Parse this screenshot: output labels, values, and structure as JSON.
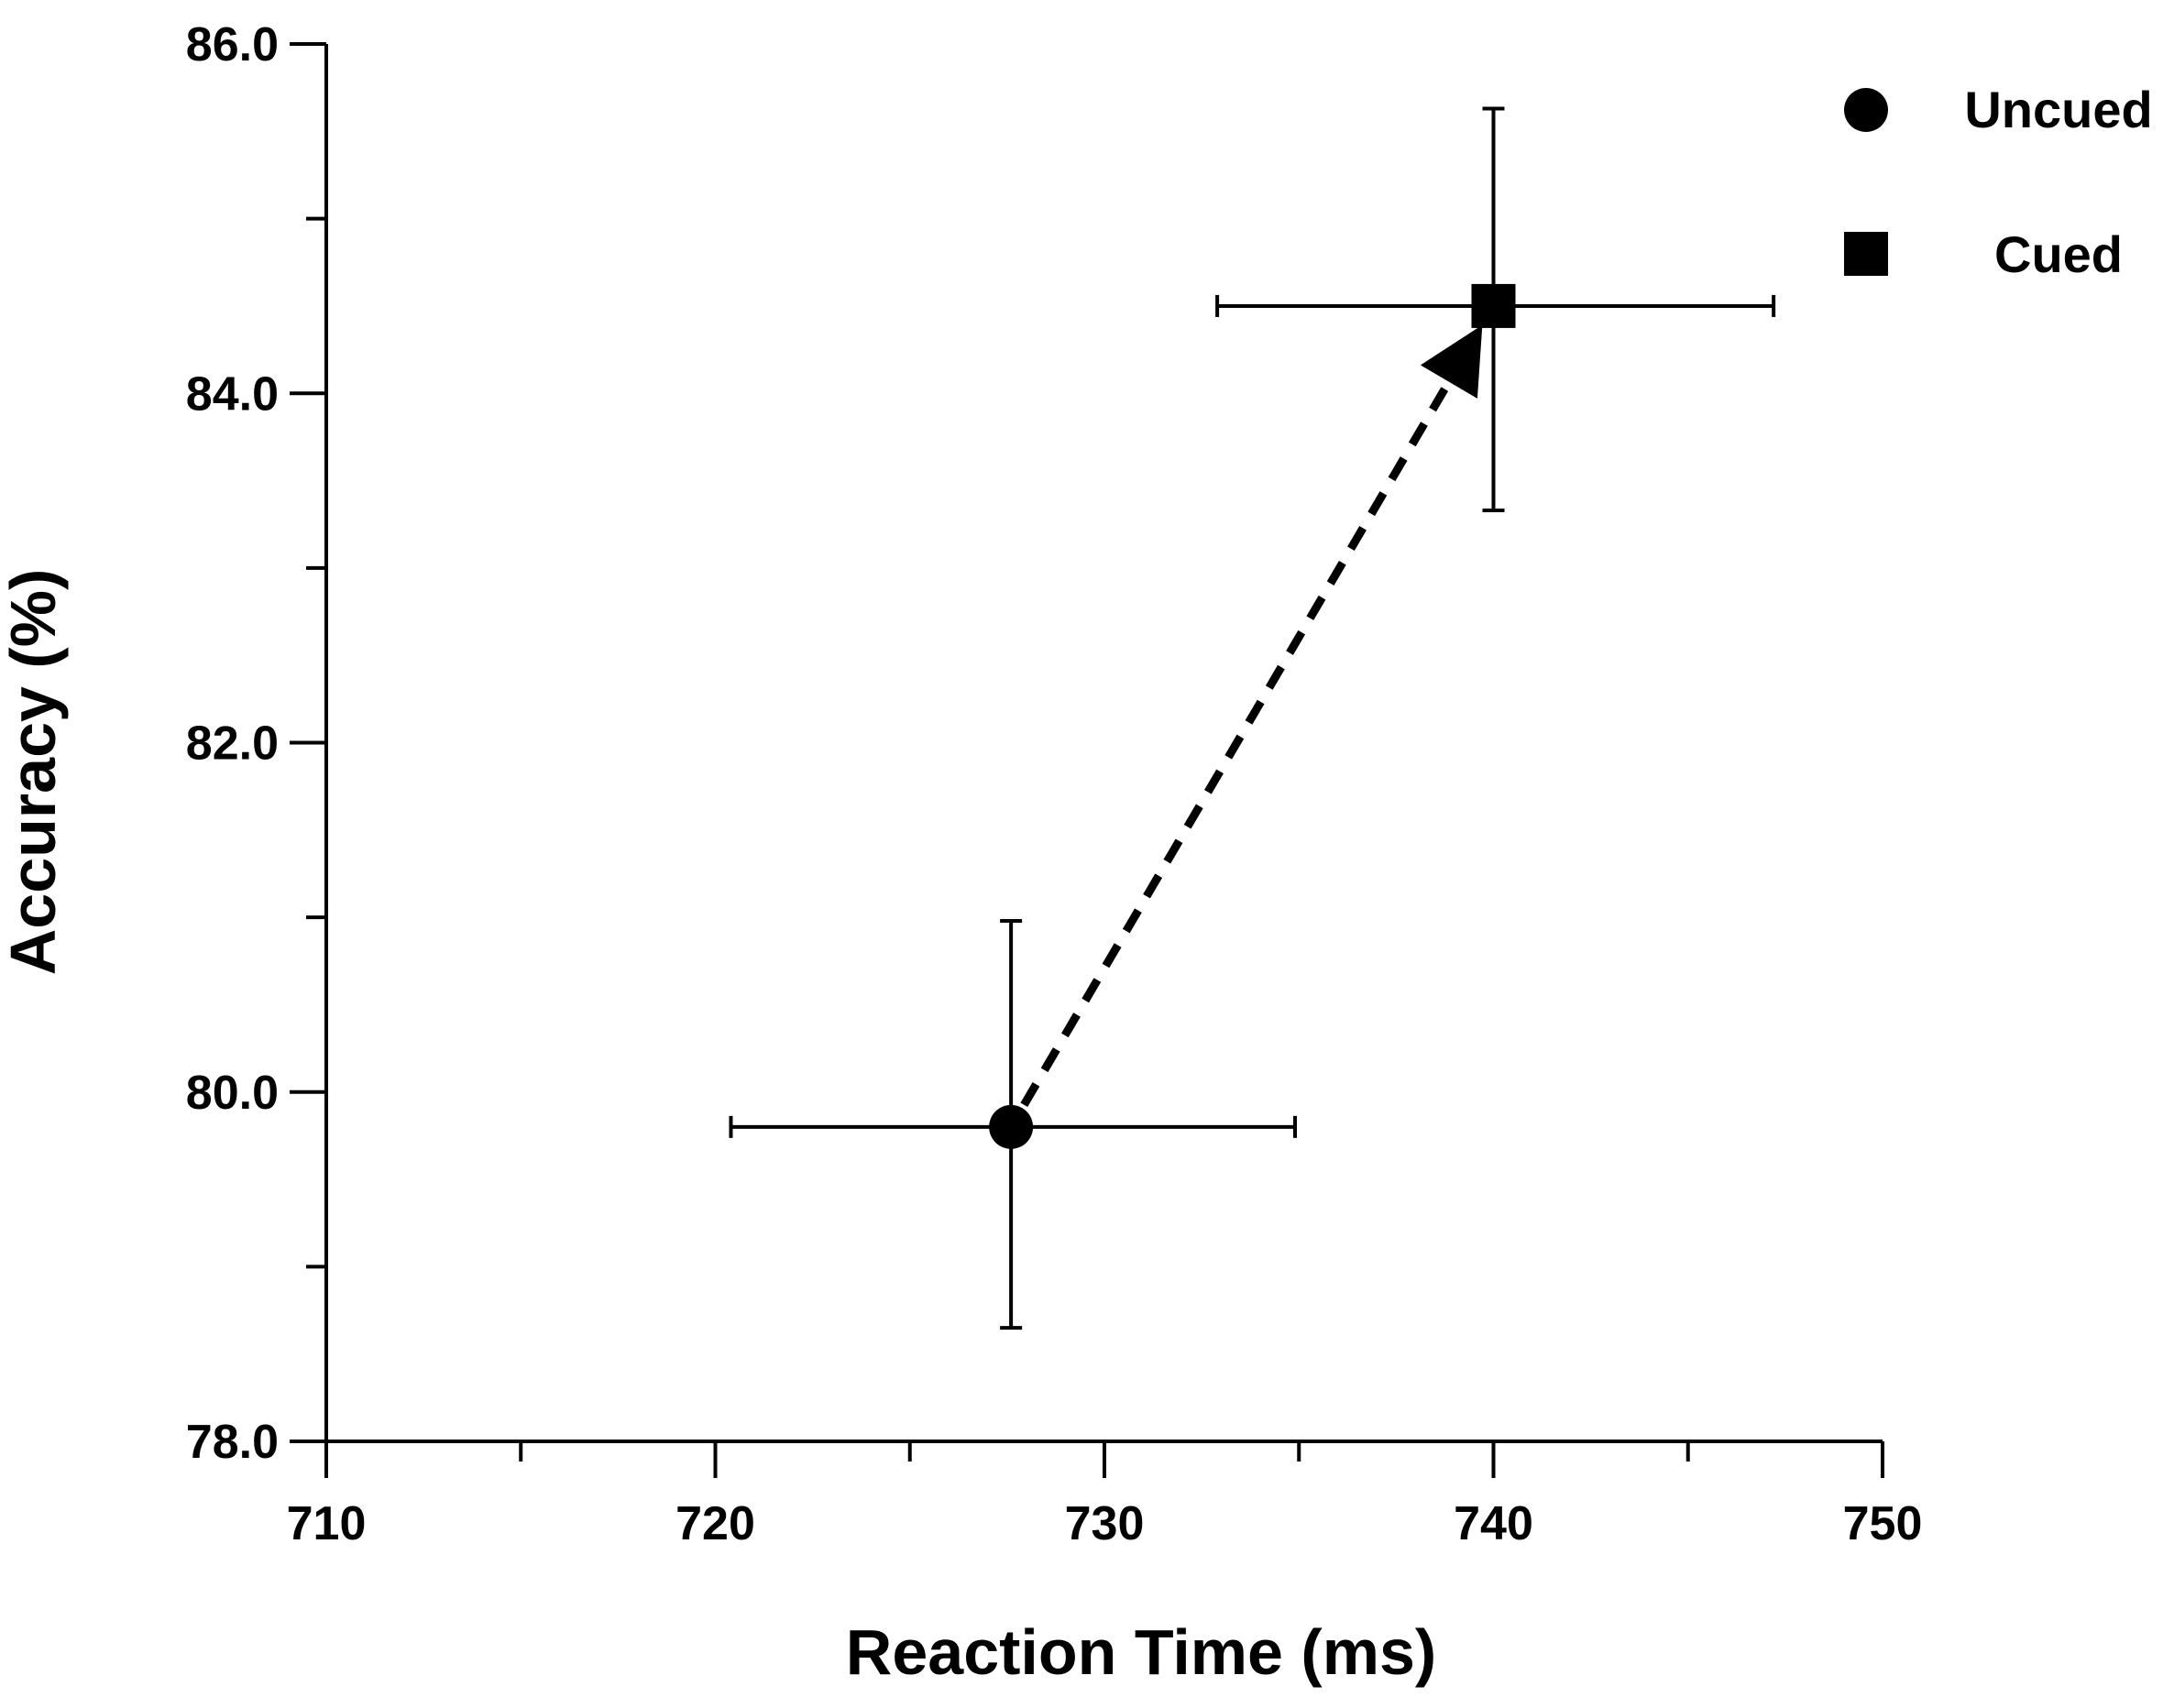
{
  "chart_data": {
    "type": "scatter",
    "title": "",
    "xlabel": "Reaction Time (ms)",
    "ylabel": "Accuracy (%)",
    "xlim": [
      710,
      750
    ],
    "ylim": [
      78.0,
      86.0
    ],
    "x_ticks": [
      {
        "value": 710,
        "label": "710"
      },
      {
        "value": 720,
        "label": "720"
      },
      {
        "value": 730,
        "label": "730"
      },
      {
        "value": 740,
        "label": "740"
      },
      {
        "value": 750,
        "label": "750"
      }
    ],
    "x_minor_ticks": [
      715,
      725,
      735,
      745
    ],
    "y_ticks": [
      {
        "value": 78.0,
        "label": "78.0"
      },
      {
        "value": 80.0,
        "label": "80.0"
      },
      {
        "value": 82.0,
        "label": "82.0"
      },
      {
        "value": 84.0,
        "label": "84.0"
      },
      {
        "value": 86.0,
        "label": "86.0"
      }
    ],
    "y_minor_ticks": [
      79.0,
      81.0,
      83.0,
      85.0
    ],
    "grid": false,
    "legend_position": "top-right",
    "series": [
      {
        "name": "Uncued",
        "marker": "circle",
        "x": 727.6,
        "y": 79.8,
        "x_err_low": 720.4,
        "x_err_high": 734.9,
        "y_err_low": 78.65,
        "y_err_high": 80.98
      },
      {
        "name": "Cued",
        "marker": "square",
        "x": 740.0,
        "y": 84.5,
        "x_err_low": 732.9,
        "x_err_high": 747.2,
        "y_err_low": 83.33,
        "y_err_high": 85.63
      }
    ],
    "annotations": [
      {
        "type": "dashed-arrow",
        "from": "Uncued",
        "to": "Cued"
      }
    ]
  },
  "colors": {
    "ink": "#000000",
    "background": "#ffffff"
  }
}
